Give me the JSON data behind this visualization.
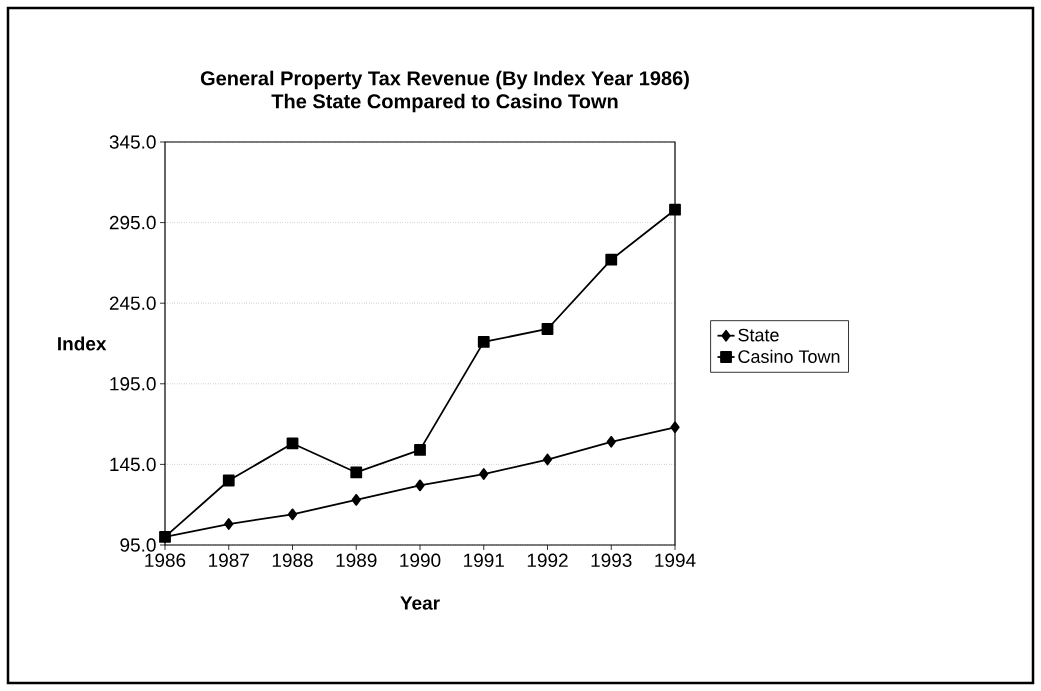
{
  "chart_data": {
    "type": "line",
    "title": "General Property Tax Revenue (By Index Year 1986)",
    "subtitle": "The State Compared to Casino Town",
    "xlabel": "Year",
    "ylabel": "Index",
    "categories": [
      "1986",
      "1987",
      "1988",
      "1989",
      "1990",
      "1991",
      "1992",
      "1993",
      "1994"
    ],
    "series": [
      {
        "name": "State",
        "color": "#000000",
        "marker": "diamond",
        "values": [
          100,
          108,
          114,
          123,
          132,
          139,
          148,
          159,
          168
        ]
      },
      {
        "name": "Casino Town",
        "color": "#000000",
        "marker": "square",
        "values": [
          100,
          135,
          158,
          140,
          154,
          221,
          229,
          272,
          303
        ]
      }
    ],
    "ylim": [
      95,
      345
    ],
    "yticks": [
      {
        "value": 95,
        "label": "95.0"
      },
      {
        "value": 145,
        "label": "145.0"
      },
      {
        "value": 195,
        "label": "195.0"
      },
      {
        "value": 245,
        "label": "245.0"
      },
      {
        "value": 295,
        "label": "295.0"
      },
      {
        "value": 345,
        "label": "345.0"
      }
    ],
    "grid": "y",
    "legend": "right",
    "line_style": "solid"
  }
}
